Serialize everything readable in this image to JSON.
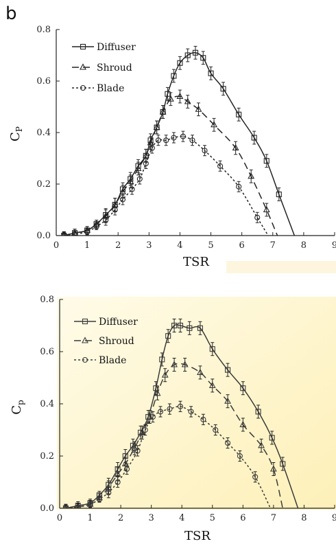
{
  "panel_label": "b",
  "chart_data": [
    {
      "type": "line",
      "xlabel": "TSR",
      "ylabel": "C",
      "ylabel_sub": "P",
      "xlim": [
        0,
        9
      ],
      "ylim": [
        0,
        0.8
      ],
      "xticks": [
        "0",
        "1",
        "2",
        "3",
        "4",
        "5",
        "6",
        "7",
        "8",
        "9"
      ],
      "yticks": [
        "0.0",
        "0.2",
        "0.4",
        "0.6",
        "0.8"
      ],
      "legend_position": "top-left",
      "series": [
        {
          "name": "Diffuser",
          "marker": "square",
          "dash": "solid",
          "color": "#222222",
          "points": [
            [
              0.25,
              0.0
            ],
            [
              0.6,
              0.01
            ],
            [
              1.0,
              0.02
            ],
            [
              1.3,
              0.045
            ],
            [
              1.6,
              0.08
            ],
            [
              1.9,
              0.12
            ],
            [
              2.15,
              0.18
            ],
            [
              2.4,
              0.22
            ],
            [
              2.65,
              0.27
            ],
            [
              2.9,
              0.31
            ],
            [
              3.05,
              0.37
            ],
            [
              3.25,
              0.42
            ],
            [
              3.45,
              0.48
            ],
            [
              3.6,
              0.55
            ],
            [
              3.8,
              0.62
            ],
            [
              4.0,
              0.67
            ],
            [
              4.25,
              0.7
            ],
            [
              4.5,
              0.71
            ],
            [
              4.75,
              0.69
            ],
            [
              5.0,
              0.63
            ],
            [
              5.4,
              0.57
            ],
            [
              5.9,
              0.47
            ],
            [
              6.4,
              0.38
            ],
            [
              6.8,
              0.29
            ],
            [
              7.2,
              0.16
            ],
            [
              7.7,
              0.0
            ]
          ],
          "err": 0.025
        },
        {
          "name": "Shroud",
          "marker": "triangle",
          "dash": "dash",
          "color": "#222222",
          "points": [
            [
              0.25,
              0.0
            ],
            [
              0.6,
              0.01
            ],
            [
              1.0,
              0.02
            ],
            [
              1.3,
              0.045
            ],
            [
              1.6,
              0.075
            ],
            [
              1.9,
              0.12
            ],
            [
              2.15,
              0.17
            ],
            [
              2.4,
              0.21
            ],
            [
              2.65,
              0.26
            ],
            [
              2.9,
              0.31
            ],
            [
              3.05,
              0.36
            ],
            [
              3.25,
              0.42
            ],
            [
              3.45,
              0.48
            ],
            [
              3.7,
              0.53
            ],
            [
              4.0,
              0.54
            ],
            [
              4.25,
              0.52
            ],
            [
              4.6,
              0.49
            ],
            [
              5.1,
              0.43
            ],
            [
              5.8,
              0.34
            ],
            [
              6.3,
              0.23
            ],
            [
              6.8,
              0.1
            ],
            [
              7.15,
              0.0
            ]
          ],
          "err": 0.025
        },
        {
          "name": "Blade",
          "marker": "circle",
          "dash": "dot",
          "color": "#222222",
          "points": [
            [
              0.25,
              0.0
            ],
            [
              0.6,
              0.005
            ],
            [
              1.0,
              0.015
            ],
            [
              1.3,
              0.035
            ],
            [
              1.6,
              0.06
            ],
            [
              1.9,
              0.1
            ],
            [
              2.15,
              0.14
            ],
            [
              2.45,
              0.18
            ],
            [
              2.7,
              0.22
            ],
            [
              2.9,
              0.28
            ],
            [
              3.1,
              0.34
            ],
            [
              3.3,
              0.37
            ],
            [
              3.55,
              0.37
            ],
            [
              3.8,
              0.38
            ],
            [
              4.1,
              0.385
            ],
            [
              4.4,
              0.37
            ],
            [
              4.8,
              0.33
            ],
            [
              5.3,
              0.27
            ],
            [
              5.9,
              0.19
            ],
            [
              6.5,
              0.07
            ],
            [
              6.85,
              0.0
            ]
          ],
          "err": 0.02
        }
      ]
    },
    {
      "type": "line",
      "xlabel": "TSR",
      "ylabel": "C",
      "ylabel_sub": "p",
      "xlim": [
        0,
        9
      ],
      "ylim": [
        0,
        0.8
      ],
      "xticks": [
        "0",
        "1",
        "2",
        "3",
        "4",
        "5",
        "6",
        "7",
        "8",
        "9"
      ],
      "yticks": [
        "0.0",
        "0.2",
        "0.4",
        "0.6",
        "0.8"
      ],
      "legend_position": "top-left",
      "series": [
        {
          "name": "Diffuser",
          "marker": "square",
          "dash": "solid",
          "color": "#3a3a3a",
          "points": [
            [
              0.2,
              0.0
            ],
            [
              0.6,
              0.01
            ],
            [
              1.0,
              0.02
            ],
            [
              1.3,
              0.05
            ],
            [
              1.6,
              0.09
            ],
            [
              1.9,
              0.15
            ],
            [
              2.15,
              0.2
            ],
            [
              2.4,
              0.24
            ],
            [
              2.65,
              0.29
            ],
            [
              2.9,
              0.35
            ],
            [
              3.15,
              0.46
            ],
            [
              3.35,
              0.57
            ],
            [
              3.55,
              0.66
            ],
            [
              3.75,
              0.7
            ],
            [
              3.95,
              0.7
            ],
            [
              4.25,
              0.69
            ],
            [
              4.6,
              0.69
            ],
            [
              5.0,
              0.61
            ],
            [
              5.5,
              0.53
            ],
            [
              6.0,
              0.46
            ],
            [
              6.5,
              0.37
            ],
            [
              6.95,
              0.27
            ],
            [
              7.3,
              0.17
            ],
            [
              7.8,
              0.0
            ]
          ],
          "err": 0.025
        },
        {
          "name": "Shroud",
          "marker": "triangle",
          "dash": "dash",
          "color": "#3a3a3a",
          "points": [
            [
              0.2,
              0.0
            ],
            [
              0.6,
              0.005
            ],
            [
              1.0,
              0.015
            ],
            [
              1.3,
              0.04
            ],
            [
              1.6,
              0.08
            ],
            [
              1.9,
              0.13
            ],
            [
              2.15,
              0.17
            ],
            [
              2.45,
              0.23
            ],
            [
              2.7,
              0.29
            ],
            [
              2.95,
              0.35
            ],
            [
              3.2,
              0.44
            ],
            [
              3.45,
              0.51
            ],
            [
              3.75,
              0.55
            ],
            [
              4.1,
              0.55
            ],
            [
              4.6,
              0.52
            ],
            [
              5.0,
              0.47
            ],
            [
              5.5,
              0.41
            ],
            [
              6.0,
              0.32
            ],
            [
              6.6,
              0.24
            ],
            [
              7.0,
              0.15
            ],
            [
              7.3,
              0.0
            ]
          ],
          "err": 0.025
        },
        {
          "name": "Blade",
          "marker": "circle",
          "dash": "dot",
          "color": "#3a3a3a",
          "points": [
            [
              0.2,
              0.0
            ],
            [
              0.6,
              0.005
            ],
            [
              1.0,
              0.015
            ],
            [
              1.3,
              0.035
            ],
            [
              1.6,
              0.06
            ],
            [
              1.9,
              0.1
            ],
            [
              2.2,
              0.15
            ],
            [
              2.55,
              0.22
            ],
            [
              2.8,
              0.3
            ],
            [
              3.05,
              0.35
            ],
            [
              3.3,
              0.37
            ],
            [
              3.6,
              0.38
            ],
            [
              3.95,
              0.39
            ],
            [
              4.3,
              0.37
            ],
            [
              4.7,
              0.34
            ],
            [
              5.1,
              0.3
            ],
            [
              5.5,
              0.25
            ],
            [
              5.9,
              0.2
            ],
            [
              6.4,
              0.12
            ],
            [
              6.9,
              0.0
            ]
          ],
          "err": 0.02
        }
      ]
    }
  ]
}
